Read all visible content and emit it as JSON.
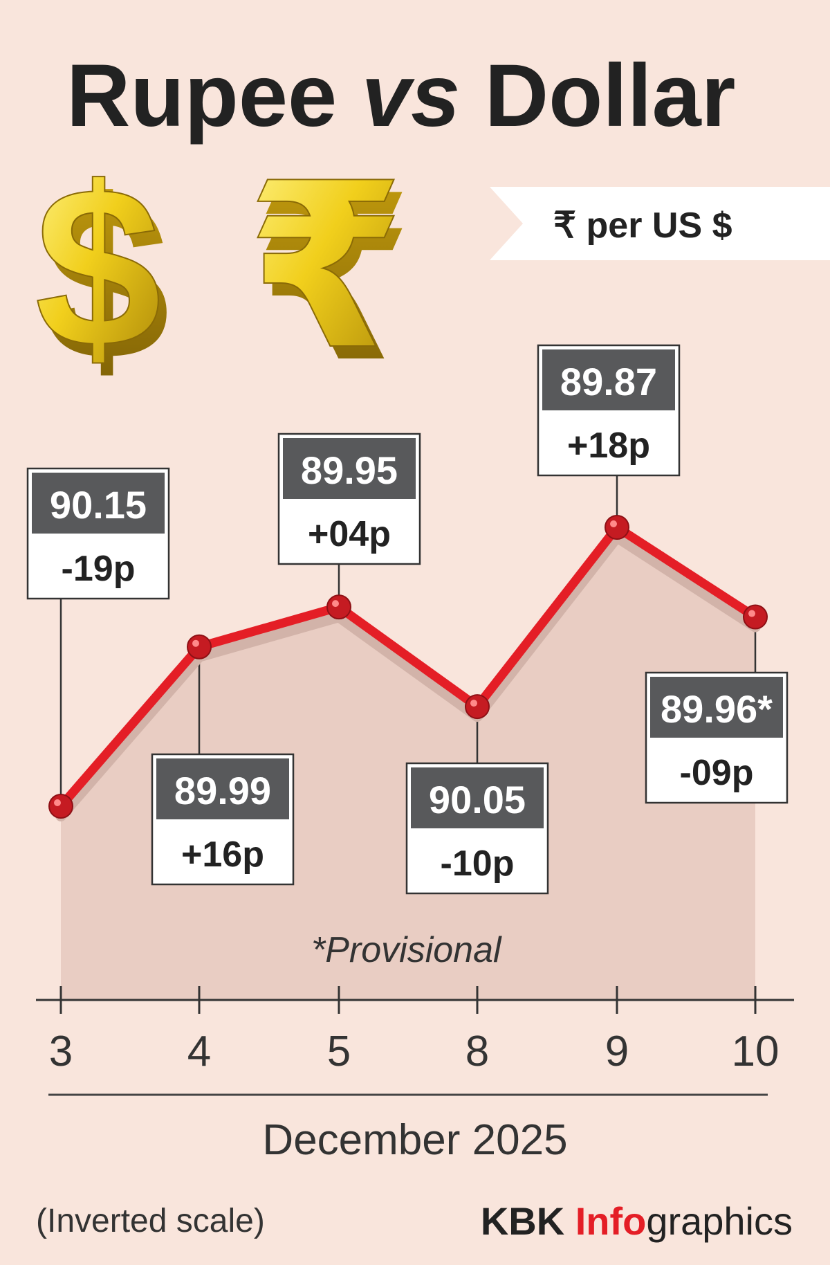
{
  "chart_data": {
    "type": "line",
    "title": "Rupee vs Dollar",
    "title_parts": [
      "Rupee ",
      "vs",
      " Dollar"
    ],
    "unit_label": "₹  per US $",
    "categories": [
      "3",
      "4",
      "5",
      "8",
      "9",
      "10"
    ],
    "values": [
      90.15,
      89.99,
      89.95,
      90.05,
      89.87,
      89.96
    ],
    "value_labels": [
      "90.15",
      "89.99",
      "89.95",
      "90.05",
      "89.87",
      "89.96*"
    ],
    "change_labels": [
      "-19p",
      "+16p",
      "+04p",
      "-10p",
      "+18p",
      "-09p"
    ],
    "xlabel": "December 2025",
    "note": "*Provisional",
    "scale_note": "(Inverted scale)",
    "inverted_y": true,
    "grid": false,
    "line_color": "#e41e26",
    "area_color": "#e9cdc3",
    "background_color": "#f9e5dc",
    "box_header_color": "#58595b"
  },
  "credit": {
    "part1": "KBK ",
    "part2": "Info",
    "part3": "graphics",
    "accent_color": "#e41e26"
  }
}
